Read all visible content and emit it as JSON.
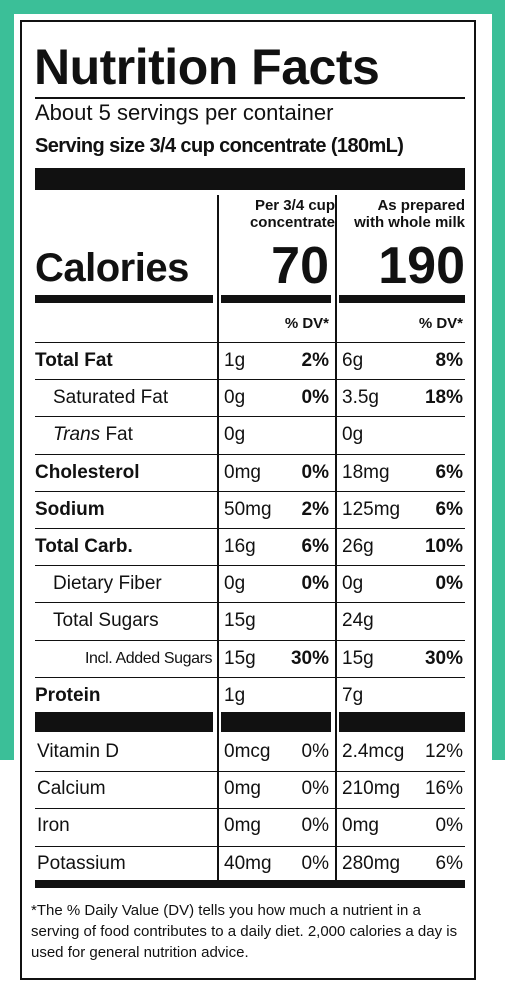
{
  "title": "Nutrition Facts",
  "servings": "About 5 servings per container",
  "serving_size": "Serving size 3/4 cup concentrate (180mL)",
  "columns": [
    [
      "Per 3/4 cup",
      "concentrate"
    ],
    [
      "As prepared",
      "with whole milk"
    ]
  ],
  "calories": {
    "label": "Calories",
    "values": [
      70,
      190
    ]
  },
  "dv_header": [
    "% DV*",
    "% DV*"
  ],
  "nutrients": [
    {
      "label": "Total Fat",
      "bold": true,
      "indent": 0,
      "cells": [
        [
          "1g",
          "2%"
        ],
        [
          "6g",
          "8%"
        ]
      ]
    },
    {
      "label": "Saturated Fat",
      "bold": false,
      "indent": 1,
      "cells": [
        [
          "0g",
          "0%"
        ],
        [
          "3.5g",
          "18%"
        ]
      ]
    },
    {
      "label_parts": [
        "Trans",
        " Fat"
      ],
      "bold": false,
      "indent": 1,
      "cells": [
        [
          "0g"
        ],
        [
          "0g"
        ]
      ]
    },
    {
      "label": "Cholesterol",
      "bold": true,
      "indent": 0,
      "cells": [
        [
          "0mg",
          "0%"
        ],
        [
          "18mg",
          "6%"
        ]
      ]
    },
    {
      "label": "Sodium",
      "bold": true,
      "indent": 0,
      "cells": [
        [
          "50mg",
          "2%"
        ],
        [
          "125mg",
          "6%"
        ]
      ]
    },
    {
      "label": "Total Carb.",
      "bold": true,
      "indent": 0,
      "cells": [
        [
          "16g",
          "6%"
        ],
        [
          "26g",
          "10%"
        ]
      ]
    },
    {
      "label": "Dietary Fiber",
      "bold": false,
      "indent": 1,
      "cells": [
        [
          "0g",
          "0%"
        ],
        [
          "0g",
          "0%"
        ]
      ]
    },
    {
      "label": "Total Sugars",
      "bold": false,
      "indent": 1,
      "cells": [
        [
          "15g"
        ],
        [
          "24g"
        ]
      ]
    },
    {
      "label": "Incl. Added Sugars",
      "bold": false,
      "indent": 2,
      "cells": [
        [
          "15g",
          "30%"
        ],
        [
          "15g",
          "30%"
        ]
      ]
    },
    {
      "label": "Protein",
      "bold": true,
      "indent": 0,
      "cells": [
        [
          "1g"
        ],
        [
          "7g"
        ]
      ]
    }
  ],
  "vitamins": [
    {
      "label": "Vitamin D",
      "cells": [
        [
          "0mcg",
          "0%"
        ],
        [
          "2.4mcg",
          "12%"
        ]
      ]
    },
    {
      "label": "Calcium",
      "cells": [
        [
          "0mg",
          "0%"
        ],
        [
          "210mg",
          "16%"
        ]
      ]
    },
    {
      "label": "Iron",
      "cells": [
        [
          "0mg",
          "0%"
        ],
        [
          "0mg",
          "0%"
        ]
      ]
    },
    {
      "label": "Potassium",
      "cells": [
        [
          "40mg",
          "0%"
        ],
        [
          "280mg",
          "6%"
        ]
      ]
    }
  ],
  "footnote": "*The % Daily Value (DV) tells you how much a nutrient in a serving of food contributes to a daily diet. 2,000 calories a day is used for general nutrition advice."
}
